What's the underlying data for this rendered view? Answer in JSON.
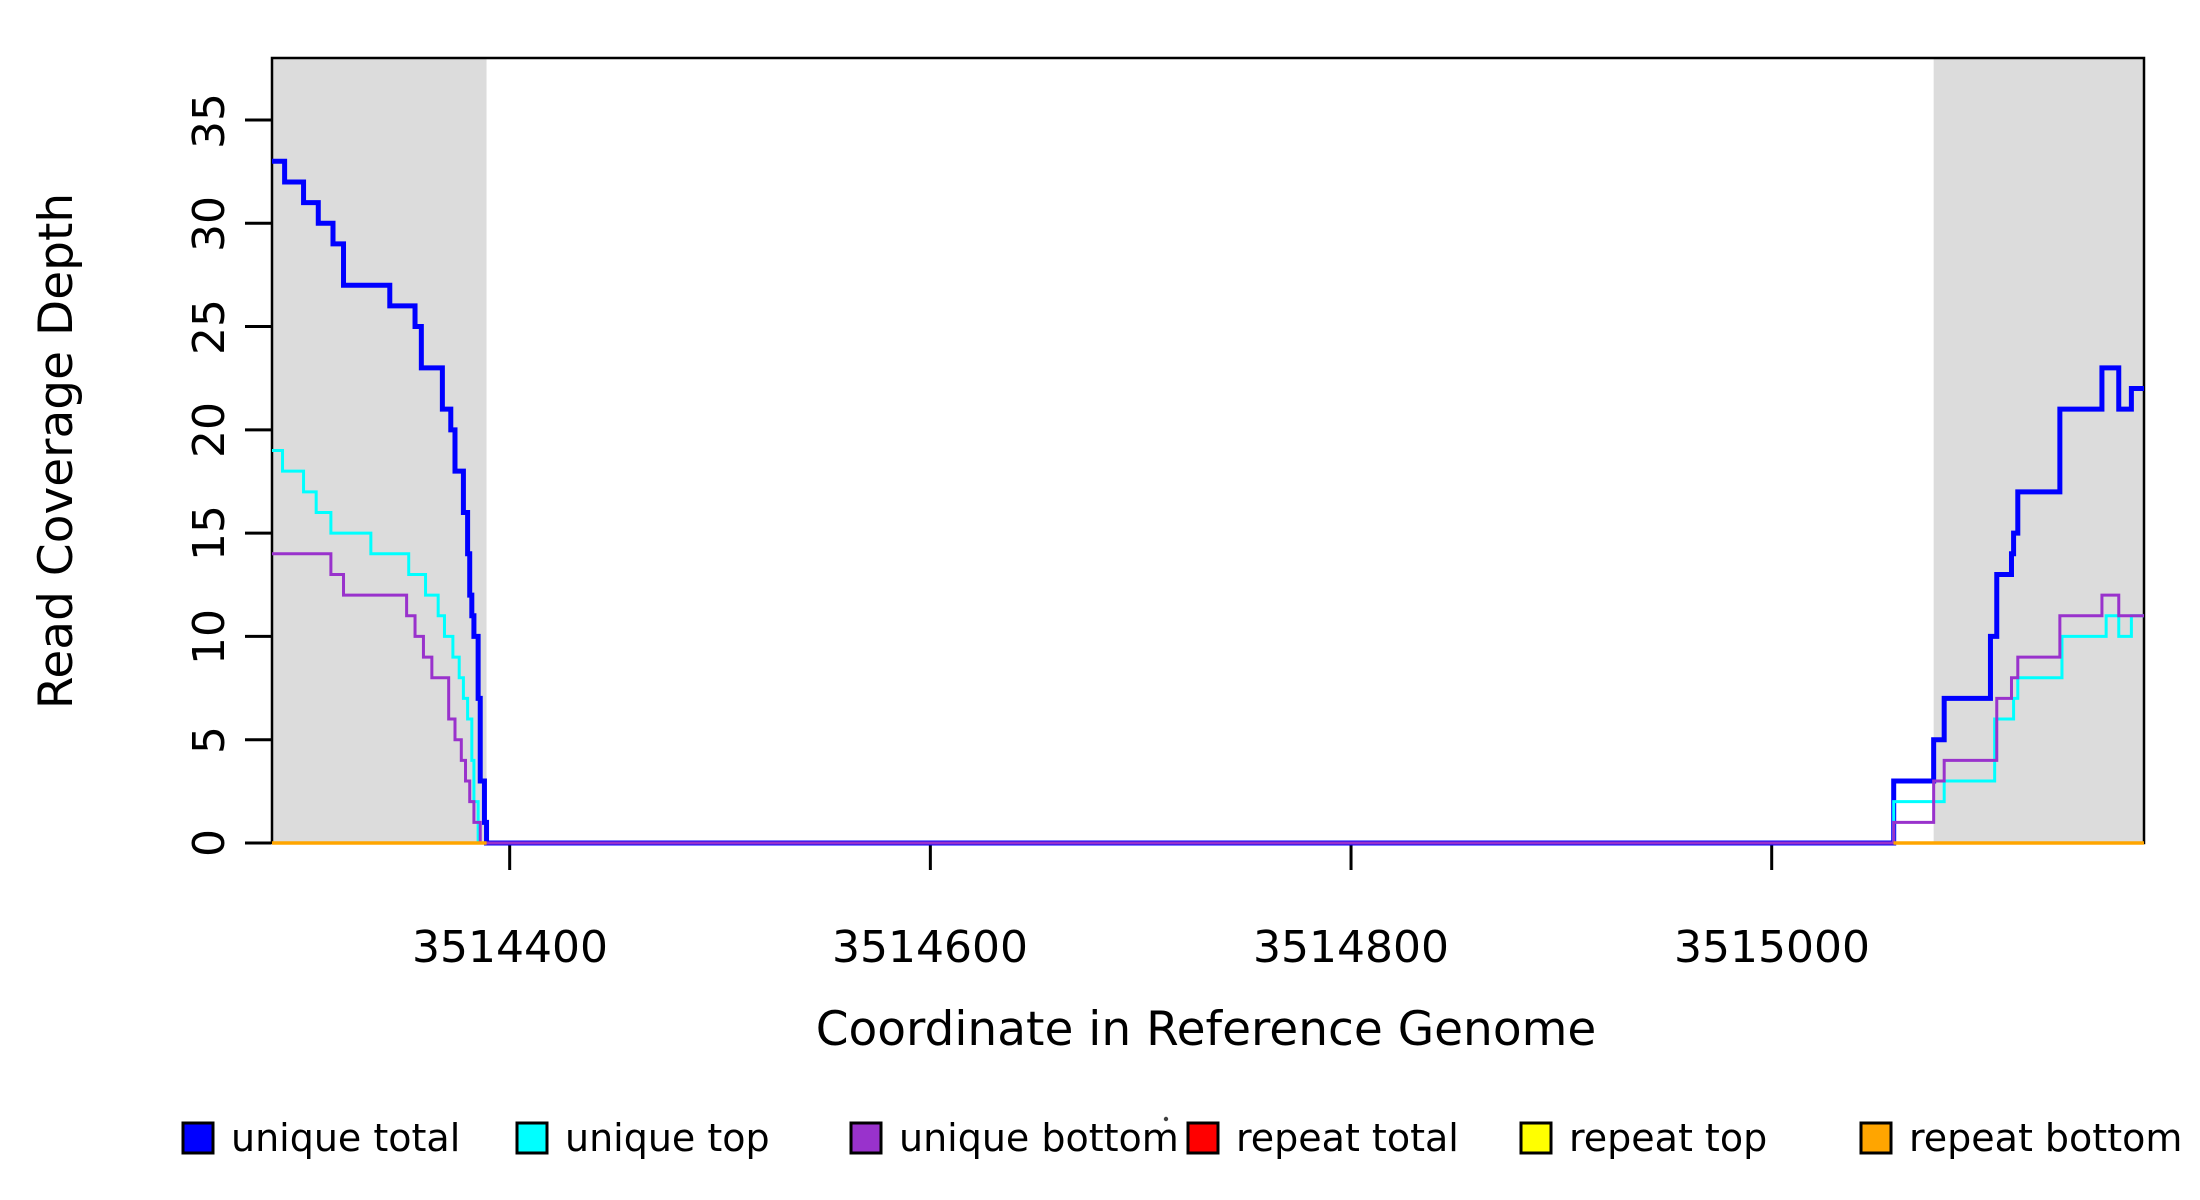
{
  "figure": {
    "background": "#FFFFFF",
    "xlabel": "Coordinate in Reference Genome",
    "ylabel": "Read Coverage Depth",
    "xtick_labels": [
      "3514400",
      "3514600",
      "3514800",
      "3515000"
    ],
    "ytick_labels": [
      "0",
      "5",
      "10",
      "15",
      "20",
      "25",
      "30",
      "35"
    ]
  },
  "chart_data": {
    "type": "line",
    "subtype": "step",
    "title": "",
    "xlabel": "Coordinate in Reference Genome",
    "ylabel": "Read Coverage Depth",
    "xlim": [
      3514287,
      3515177
    ],
    "ylim": [
      0,
      38
    ],
    "xticks": [
      3514400,
      3514600,
      3514800,
      3515000
    ],
    "yticks": [
      0,
      5,
      10,
      15,
      20,
      25,
      30,
      35
    ],
    "grid": false,
    "legend_position": "bottom",
    "box_color": "#000000",
    "shaded_regions": [
      {
        "x0": 3514287,
        "x1": 3514389,
        "color": "#DCDCDC",
        "label": "repeat-region-left"
      },
      {
        "x0": 3515077,
        "x1": 3515177,
        "color": "#DCDCDC",
        "label": "repeat-region-right"
      }
    ],
    "series": [
      {
        "name": "unique total",
        "color": "#0000FF",
        "width": 5,
        "points": [
          [
            3514287,
            33
          ],
          [
            3514293,
            32
          ],
          [
            3514302,
            31
          ],
          [
            3514309,
            30
          ],
          [
            3514316,
            29
          ],
          [
            3514321,
            27
          ],
          [
            3514343,
            26
          ],
          [
            3514355,
            25
          ],
          [
            3514358,
            23
          ],
          [
            3514368,
            21
          ],
          [
            3514372,
            20
          ],
          [
            3514374,
            18
          ],
          [
            3514378,
            16
          ],
          [
            3514380,
            14
          ],
          [
            3514381,
            12
          ],
          [
            3514382,
            11
          ],
          [
            3514383,
            10
          ],
          [
            3514385,
            7
          ],
          [
            3514386,
            3
          ],
          [
            3514388,
            1
          ],
          [
            3514389,
            0
          ],
          [
            3515058,
            3
          ],
          [
            3515077,
            5
          ],
          [
            3515082,
            7
          ],
          [
            3515104,
            10
          ],
          [
            3515107,
            13
          ],
          [
            3515114,
            14
          ],
          [
            3515115,
            15
          ],
          [
            3515117,
            17
          ],
          [
            3515137,
            21
          ],
          [
            3515157,
            23
          ],
          [
            3515165,
            21
          ],
          [
            3515171,
            22
          ],
          [
            3515177,
            22
          ]
        ]
      },
      {
        "name": "unique top",
        "color": "#00FFFF",
        "width": 3,
        "points": [
          [
            3514287,
            19
          ],
          [
            3514292,
            18
          ],
          [
            3514302,
            17
          ],
          [
            3514308,
            16
          ],
          [
            3514315,
            15
          ],
          [
            3514334,
            14
          ],
          [
            3514352,
            13
          ],
          [
            3514360,
            12
          ],
          [
            3514366,
            11
          ],
          [
            3514369,
            10
          ],
          [
            3514373,
            9
          ],
          [
            3514376,
            8
          ],
          [
            3514378,
            7
          ],
          [
            3514380,
            6
          ],
          [
            3514382,
            4
          ],
          [
            3514383,
            2
          ],
          [
            3514385,
            0
          ],
          [
            3515058,
            2
          ],
          [
            3515082,
            3
          ],
          [
            3515106,
            6
          ],
          [
            3515115,
            7
          ],
          [
            3515117,
            8
          ],
          [
            3515138,
            10
          ],
          [
            3515159,
            11
          ],
          [
            3515165,
            10
          ],
          [
            3515171,
            11
          ],
          [
            3515177,
            11
          ]
        ]
      },
      {
        "name": "unique bottom",
        "color": "#9932CC",
        "width": 3,
        "points": [
          [
            3514287,
            14
          ],
          [
            3514315,
            13
          ],
          [
            3514321,
            12
          ],
          [
            3514351,
            11
          ],
          [
            3514355,
            10
          ],
          [
            3514359,
            9
          ],
          [
            3514363,
            8
          ],
          [
            3514371,
            6
          ],
          [
            3514374,
            5
          ],
          [
            3514377,
            4
          ],
          [
            3514379,
            3
          ],
          [
            3514381,
            2
          ],
          [
            3514383,
            1
          ],
          [
            3514386,
            0
          ],
          [
            3515058,
            1
          ],
          [
            3515077,
            3
          ],
          [
            3515082,
            4
          ],
          [
            3515107,
            7
          ],
          [
            3515114,
            8
          ],
          [
            3515117,
            9
          ],
          [
            3515137,
            11
          ],
          [
            3515157,
            12
          ],
          [
            3515165,
            11
          ],
          [
            3515177,
            11
          ]
        ]
      },
      {
        "name": "repeat total",
        "color": "#FF0000",
        "width": 3,
        "segments": [
          [
            [
              3514287,
              0
            ],
            [
              3514389,
              0
            ]
          ],
          [
            [
              3515058,
              0
            ],
            [
              3515177,
              0
            ]
          ]
        ]
      },
      {
        "name": "repeat top",
        "color": "#FFFF00",
        "width": 3,
        "segments": [
          [
            [
              3514287,
              0
            ],
            [
              3514389,
              0
            ]
          ],
          [
            [
              3515058,
              0
            ],
            [
              3515177,
              0
            ]
          ]
        ]
      },
      {
        "name": "repeat bottom",
        "color": "#FFA500",
        "width": 3.5,
        "segments": [
          [
            [
              3514287,
              0
            ],
            [
              3514389,
              0
            ]
          ],
          [
            [
              3515058,
              0
            ],
            [
              3515177,
              0
            ]
          ]
        ]
      }
    ]
  }
}
